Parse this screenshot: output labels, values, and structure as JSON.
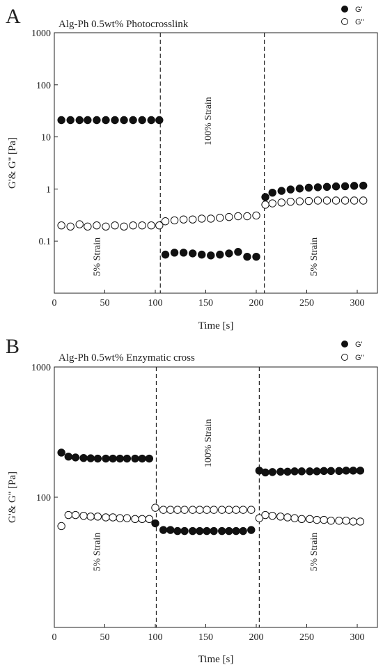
{
  "chart_data": [
    {
      "panel_letter": "A",
      "type": "scatter",
      "title": "Alg-Ph 0.5wt% Photocrosslink",
      "xlabel": "Time [s]",
      "ylabel": "G'& G'' [Pa]",
      "xlim": [
        0,
        320
      ],
      "ylim": [
        0.01,
        1000
      ],
      "yscale": "log",
      "x_ticks": [
        0,
        50,
        100,
        150,
        200,
        250,
        300
      ],
      "x_tick_labels": [
        "0",
        "50",
        "100",
        "150",
        "200",
        "250",
        "300"
      ],
      "y_ticks": [
        0.1,
        1,
        10,
        100,
        1000
      ],
      "y_tick_labels": [
        "0.1",
        "1",
        "10",
        "100",
        "1000"
      ],
      "legend": {
        "placement": "top-right",
        "entries": [
          "G'",
          "G''"
        ]
      },
      "dividers": [
        105,
        208
      ],
      "annotations": [
        {
          "text": "5% Strain",
          "x": 45,
          "y": 0.05
        },
        {
          "text": "100% Strain",
          "x": 155,
          "y": 20
        },
        {
          "text": "5% Strain",
          "x": 260,
          "y": 0.05
        }
      ],
      "series": [
        {
          "name": "G'",
          "marker": "filled",
          "x": [
            7,
            16,
            25,
            33,
            42,
            51,
            60,
            69,
            78,
            87,
            96,
            104,
            110,
            119,
            128,
            137,
            146,
            155,
            164,
            173,
            182,
            191,
            200,
            209,
            216,
            225,
            234,
            243,
            252,
            261,
            270,
            279,
            288,
            297,
            306
          ],
          "y": [
            21,
            21,
            21,
            21,
            21,
            21,
            21,
            21,
            21,
            21,
            21,
            21,
            0.055,
            0.06,
            0.06,
            0.058,
            0.055,
            0.053,
            0.055,
            0.058,
            0.062,
            0.05,
            0.05,
            0.7,
            0.85,
            0.92,
            0.98,
            1.02,
            1.06,
            1.08,
            1.1,
            1.12,
            1.13,
            1.15,
            1.16
          ]
        },
        {
          "name": "G''",
          "marker": "open",
          "x": [
            7,
            16,
            25,
            33,
            42,
            51,
            60,
            69,
            78,
            87,
            96,
            104,
            110,
            119,
            128,
            137,
            146,
            155,
            164,
            173,
            182,
            191,
            200,
            209,
            216,
            225,
            234,
            243,
            252,
            261,
            270,
            279,
            288,
            297,
            306
          ],
          "y": [
            0.2,
            0.19,
            0.21,
            0.19,
            0.2,
            0.19,
            0.2,
            0.19,
            0.2,
            0.2,
            0.2,
            0.2,
            0.24,
            0.25,
            0.26,
            0.26,
            0.27,
            0.27,
            0.28,
            0.29,
            0.3,
            0.3,
            0.31,
            0.5,
            0.53,
            0.55,
            0.57,
            0.58,
            0.59,
            0.6,
            0.6,
            0.6,
            0.6,
            0.6,
            0.6
          ]
        }
      ]
    },
    {
      "panel_letter": "B",
      "type": "scatter",
      "title": "Alg-Ph 0.5wt% Enzymatic cross",
      "xlabel": "Time [s]",
      "ylabel": "G'& G'' [Pa]",
      "xlim": [
        0,
        320
      ],
      "ylim": [
        10,
        1000
      ],
      "yscale": "log",
      "x_ticks": [
        0,
        50,
        100,
        150,
        200,
        250,
        300
      ],
      "x_tick_labels": [
        "0",
        "50",
        "100",
        "150",
        "200",
        "250",
        "300"
      ],
      "y_ticks": [
        100,
        1000
      ],
      "y_tick_labels": [
        "100",
        "1000"
      ],
      "legend": {
        "placement": "top-right",
        "entries": [
          "G'",
          "G''"
        ]
      },
      "dividers": [
        101,
        203
      ],
      "annotations": [
        {
          "text": "5% Strain",
          "x": 45,
          "y": 38
        },
        {
          "text": "100% Strain",
          "x": 155,
          "y": 260
        },
        {
          "text": "5% Strain",
          "x": 260,
          "y": 38
        }
      ],
      "series": [
        {
          "name": "G'",
          "marker": "filled",
          "x": [
            7,
            14,
            21,
            29,
            36,
            43,
            51,
            58,
            65,
            72,
            80,
            87,
            94,
            100,
            108,
            115,
            122,
            129,
            137,
            144,
            151,
            158,
            166,
            173,
            180,
            187,
            195,
            203,
            209,
            216,
            224,
            231,
            238,
            245,
            253,
            260,
            267,
            274,
            282,
            289,
            296,
            303
          ],
          "y": [
            220,
            205,
            202,
            200,
            199,
            198,
            198,
            198,
            198,
            198,
            198,
            198,
            198,
            63,
            56,
            56,
            55,
            55,
            55,
            55,
            55,
            55,
            55,
            55,
            55,
            55,
            56,
            160,
            155,
            156,
            157,
            157,
            158,
            158,
            158,
            158,
            159,
            159,
            159,
            160,
            160,
            160
          ]
        },
        {
          "name": "G''",
          "marker": "open",
          "x": [
            7,
            14,
            21,
            29,
            36,
            43,
            51,
            58,
            65,
            72,
            80,
            87,
            94,
            100,
            108,
            115,
            122,
            129,
            137,
            144,
            151,
            158,
            166,
            173,
            180,
            187,
            195,
            203,
            209,
            216,
            224,
            231,
            238,
            245,
            253,
            260,
            267,
            274,
            282,
            289,
            296,
            303
          ],
          "y": [
            60,
            73,
            73,
            72,
            71,
            71,
            70,
            70,
            69,
            69,
            68,
            68,
            68,
            83,
            80,
            80,
            80,
            80,
            80,
            80,
            80,
            80,
            80,
            80,
            80,
            80,
            80,
            69,
            73,
            72,
            71,
            70,
            69,
            68,
            68,
            67,
            67,
            66,
            66,
            66,
            65,
            65
          ]
        }
      ]
    }
  ]
}
